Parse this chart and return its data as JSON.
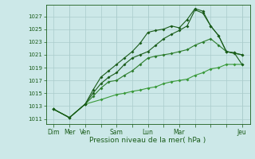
{
  "bg_color": "#cce8e8",
  "grid_color": "#aacccc",
  "line_color_dark": "#1a5c1a",
  "line_color_mid": "#2d7d2d",
  "line_color_light": "#3a9a3a",
  "xlabel": "Pression niveau de la mer( hPa )",
  "yticks": [
    1011,
    1013,
    1015,
    1017,
    1019,
    1021,
    1023,
    1025,
    1027
  ],
  "ylim": [
    1010.2,
    1028.8
  ],
  "xlim": [
    -0.5,
    12.5
  ],
  "xtick_labels": [
    "Dim",
    "Mer",
    "Ven",
    "",
    "Sam",
    "",
    "Lun",
    "",
    "Mar",
    "",
    "",
    "",
    "Jeu"
  ],
  "xtick_positions": [
    0,
    1,
    2,
    3,
    4,
    5,
    6,
    7,
    8,
    9,
    10,
    11,
    12
  ],
  "separator_x": [
    1,
    4,
    6,
    8,
    12
  ],
  "series1_x": [
    0,
    1,
    2,
    3,
    4,
    4.5,
    5,
    5.5,
    6,
    6.5,
    7,
    7.5,
    8,
    8.5,
    9,
    9.5,
    10,
    10.5,
    11,
    11.5,
    12
  ],
  "series1_y": [
    1012.5,
    1011.2,
    1013.3,
    1014.0,
    1014.8,
    1015.0,
    1015.3,
    1015.5,
    1015.8,
    1016.0,
    1016.5,
    1016.8,
    1017.0,
    1017.2,
    1017.8,
    1018.2,
    1018.8,
    1019.0,
    1019.5,
    1019.5,
    1019.5
  ],
  "series2_x": [
    0,
    1,
    2,
    2.5,
    3,
    3.5,
    4,
    4.5,
    5,
    5.5,
    6,
    6.5,
    7,
    7.5,
    8,
    8.5,
    9,
    9.5,
    10,
    10.5,
    11,
    11.5,
    12
  ],
  "series2_y": [
    1012.5,
    1011.2,
    1013.3,
    1014.5,
    1015.8,
    1016.8,
    1017.0,
    1017.8,
    1018.5,
    1019.5,
    1020.5,
    1020.8,
    1021.0,
    1021.2,
    1021.5,
    1021.8,
    1022.5,
    1023.0,
    1023.5,
    1022.5,
    1021.5,
    1021.2,
    1021.0
  ],
  "series3_x": [
    0,
    1,
    2,
    2.5,
    3,
    3.5,
    4,
    4.5,
    5,
    5.5,
    6,
    6.5,
    7,
    7.5,
    8,
    8.5,
    9,
    9.5,
    10,
    10.5,
    11,
    11.5,
    12
  ],
  "series3_y": [
    1012.5,
    1011.2,
    1013.3,
    1015.0,
    1016.5,
    1017.5,
    1018.2,
    1019.5,
    1020.5,
    1021.0,
    1021.5,
    1022.5,
    1023.5,
    1024.2,
    1024.8,
    1025.5,
    1028.0,
    1027.5,
    1025.5,
    1024.0,
    1021.5,
    1021.3,
    1021.0
  ],
  "series4_x": [
    0,
    1,
    2,
    2.5,
    3,
    3.5,
    4,
    4.5,
    5,
    5.5,
    6,
    6.5,
    7,
    7.5,
    8,
    8.5,
    9,
    9.5,
    10,
    10.5,
    11,
    11.5,
    12
  ],
  "series4_y": [
    1012.5,
    1011.2,
    1013.3,
    1015.5,
    1017.5,
    1018.5,
    1019.5,
    1020.5,
    1021.5,
    1022.8,
    1024.5,
    1024.8,
    1025.0,
    1025.5,
    1025.2,
    1026.5,
    1028.2,
    1027.8,
    1025.5,
    1024.0,
    1021.5,
    1021.3,
    1019.5
  ]
}
